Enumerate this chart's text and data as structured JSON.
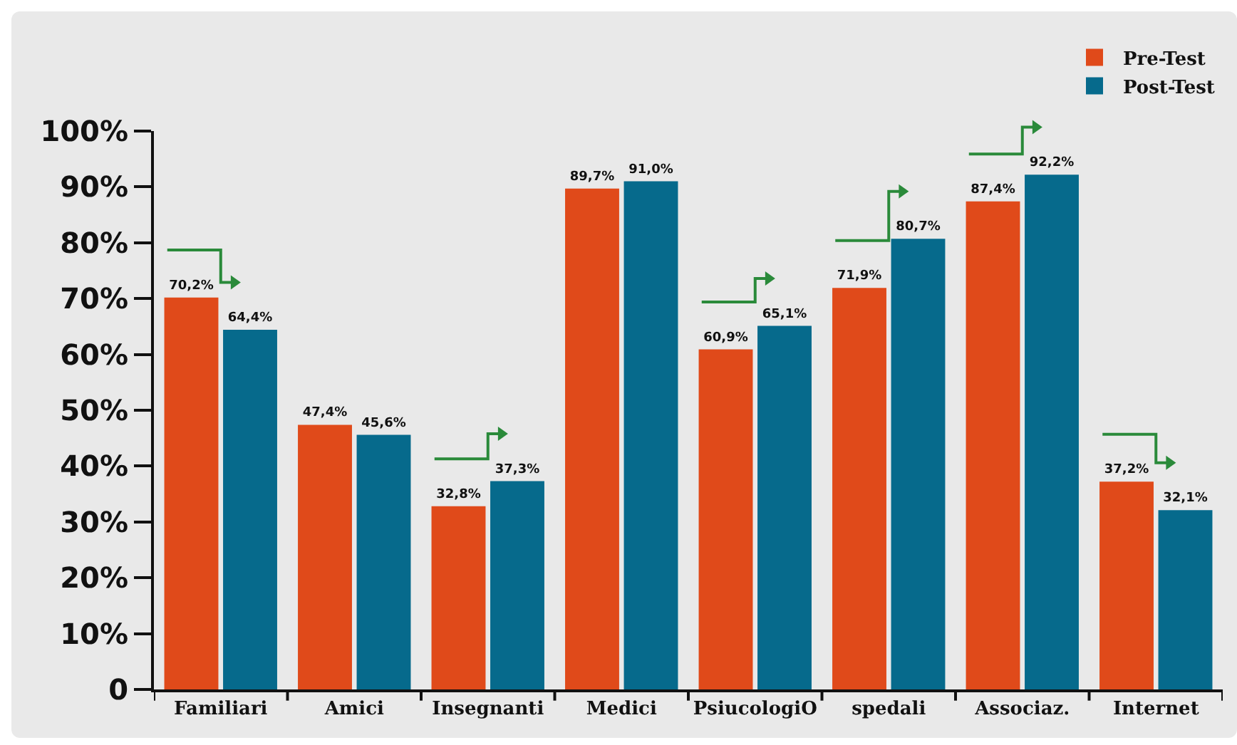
{
  "chart_data": {
    "type": "bar",
    "categories": [
      "Familiari",
      "Amici",
      "Insegnanti",
      "Medici",
      "PsiucologiO",
      "spedali",
      "Associaz.",
      "Internet"
    ],
    "series": [
      {
        "name": "Pre-Test",
        "color": "#e04a1a",
        "values": [
          70.2,
          47.4,
          32.8,
          89.7,
          60.9,
          71.9,
          87.4,
          37.2
        ],
        "value_labels": [
          "70,2%",
          "47,4%",
          "32,8%",
          "89,7%",
          "60,9%",
          "71,9%",
          "87,4%",
          "37,2%"
        ]
      },
      {
        "name": "Post-Test",
        "color": "#066a8c",
        "values": [
          64.4,
          45.6,
          37.3,
          91.0,
          65.1,
          80.7,
          92.2,
          32.1
        ],
        "value_labels": [
          "64,4%",
          "45,6%",
          "37,3%",
          "91,0%",
          "65,1%",
          "80,7%",
          "92,2%",
          "32,1%"
        ]
      }
    ],
    "ylim": [
      0,
      100
    ],
    "yticks": [
      {
        "value": 0,
        "label": "0"
      },
      {
        "value": 10,
        "label": "10%"
      },
      {
        "value": 20,
        "label": "20%"
      },
      {
        "value": 30,
        "label": "30%"
      },
      {
        "value": 40,
        "label": "40%"
      },
      {
        "value": 50,
        "label": "50%"
      },
      {
        "value": 60,
        "label": "60%"
      },
      {
        "value": 70,
        "label": "70%"
      },
      {
        "value": 80,
        "label": "80%"
      },
      {
        "value": 90,
        "label": "90%"
      },
      {
        "value": 100,
        "label": "100%"
      }
    ],
    "grid": false,
    "legend": "top right"
  }
}
